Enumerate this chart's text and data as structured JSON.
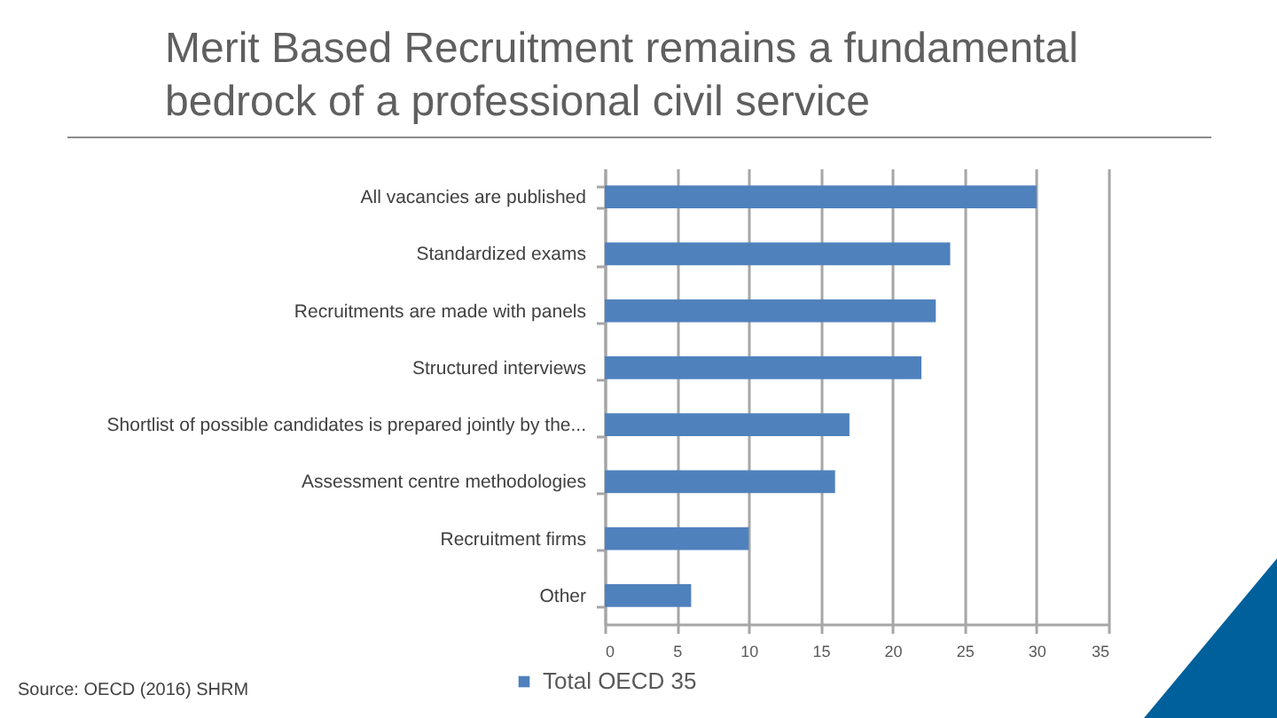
{
  "chart_data": {
    "type": "bar",
    "orientation": "horizontal",
    "title": "Merit Based Recruitment remains a fundamental bedrock of a professional civil service",
    "categories": [
      "All vacancies are published",
      "Standardized exams",
      "Recruitments are made with panels",
      "Structured interviews",
      "Shortlist of possible candidates is prepared jointly by the...",
      "Assessment centre methodologies",
      "Recruitment firms",
      "Other"
    ],
    "series": [
      {
        "name": "Total OECD 35",
        "color": "#4f81bd",
        "values": [
          30,
          24,
          23,
          22,
          17,
          16,
          10,
          6
        ]
      }
    ],
    "xlim": [
      0,
      35
    ],
    "xticks": [
      0,
      5,
      10,
      15,
      20,
      25,
      30,
      35
    ],
    "grid": "x",
    "legend": "bottom",
    "annotations": [
      "Source: OECD (2016) SHRM"
    ]
  }
}
